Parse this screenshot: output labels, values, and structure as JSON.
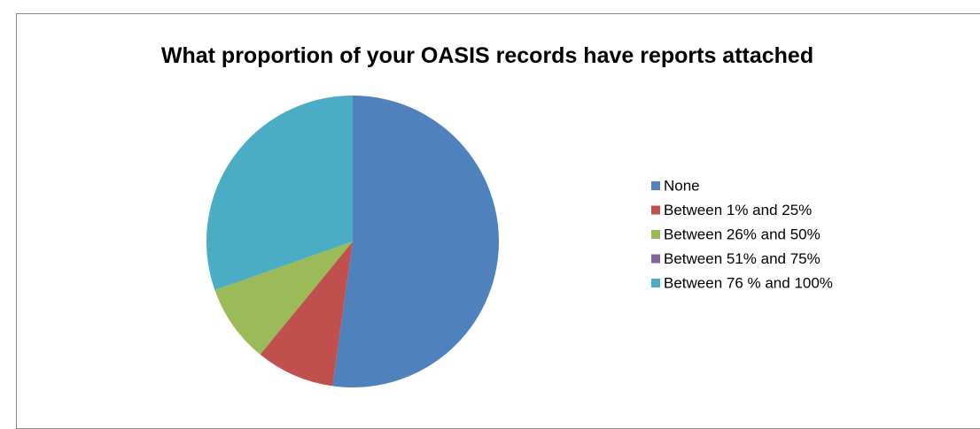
{
  "chart_data": {
    "type": "pie",
    "title": "What proportion of your OASIS records have reports attached",
    "categories": [
      "None",
      "Between 1% and 25%",
      "Between 26% and 50%",
      "Between 51% and 75%",
      "Between 76 % and 100%"
    ],
    "values": [
      52.2,
      8.7,
      8.7,
      0,
      30.4
    ],
    "colors": [
      "#4f81bd",
      "#c0504d",
      "#9bbb59",
      "#8064a2",
      "#4bacc6"
    ],
    "legend": "right"
  }
}
